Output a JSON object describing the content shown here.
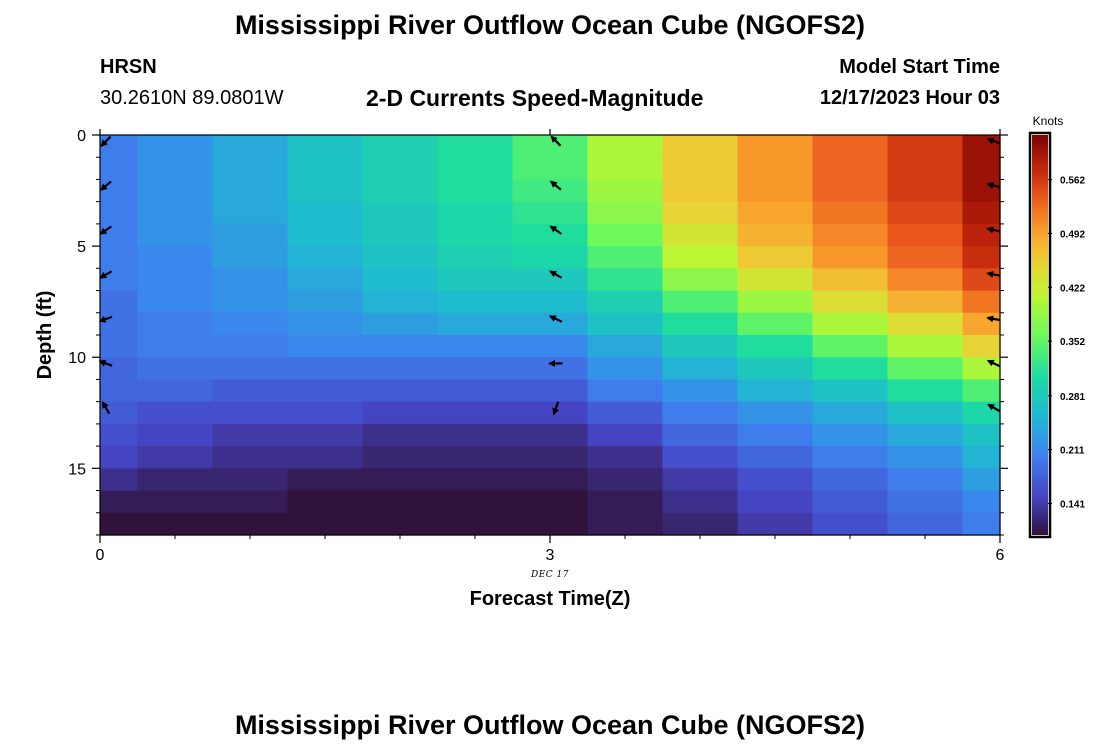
{
  "header": {
    "title": "Mississippi River Outflow Ocean Cube (NGOFS2)",
    "station": "HRSN",
    "coords": "30.2610N  89.0801W",
    "subtitle": "2-D Currents Speed-Magnitude",
    "model_label": "Model Start Time",
    "model_time": "12/17/2023 Hour 03"
  },
  "footer": {
    "title": "Mississippi River Outflow Ocean Cube (NGOFS2)"
  },
  "chart_data": {
    "type": "heatmap",
    "xlabel": "Forecast Time(Z)",
    "ylabel": "Depth (ft)",
    "x_date_label": "DEC 17",
    "x_ticks": [
      0,
      3,
      6
    ],
    "y_ticks": [
      0,
      5,
      10,
      15
    ],
    "xlim": [
      0,
      6
    ],
    "ylim": [
      0,
      18
    ],
    "y_inverted": true,
    "colorbar": {
      "label": "Knots",
      "min": 0.1,
      "max": 0.62,
      "ticks": [
        "0.141",
        "0.211",
        "0.281",
        "0.352",
        "0.422",
        "0.492",
        "0.562"
      ]
    },
    "time_columns": [
      0,
      0.5,
      1,
      1.5,
      2,
      2.5,
      3,
      3.5,
      4,
      4.5,
      5,
      5.5,
      6
    ],
    "depth_layers": 18,
    "speed_knots": [
      [
        0.2,
        0.22,
        0.24,
        0.27,
        0.29,
        0.31,
        0.34,
        0.4,
        0.46,
        0.5,
        0.53,
        0.56,
        0.6
      ],
      [
        0.2,
        0.22,
        0.24,
        0.27,
        0.29,
        0.31,
        0.34,
        0.4,
        0.46,
        0.5,
        0.53,
        0.56,
        0.6
      ],
      [
        0.2,
        0.22,
        0.24,
        0.27,
        0.29,
        0.31,
        0.33,
        0.39,
        0.46,
        0.5,
        0.53,
        0.56,
        0.6
      ],
      [
        0.2,
        0.22,
        0.24,
        0.26,
        0.28,
        0.3,
        0.32,
        0.38,
        0.45,
        0.49,
        0.52,
        0.55,
        0.59
      ],
      [
        0.2,
        0.22,
        0.23,
        0.26,
        0.28,
        0.3,
        0.31,
        0.36,
        0.43,
        0.48,
        0.51,
        0.54,
        0.58
      ],
      [
        0.2,
        0.21,
        0.23,
        0.25,
        0.27,
        0.29,
        0.3,
        0.34,
        0.41,
        0.46,
        0.5,
        0.53,
        0.57
      ],
      [
        0.2,
        0.21,
        0.22,
        0.24,
        0.26,
        0.28,
        0.28,
        0.32,
        0.38,
        0.43,
        0.47,
        0.51,
        0.55
      ],
      [
        0.19,
        0.21,
        0.22,
        0.23,
        0.25,
        0.26,
        0.26,
        0.29,
        0.34,
        0.39,
        0.44,
        0.48,
        0.52
      ],
      [
        0.19,
        0.2,
        0.21,
        0.22,
        0.23,
        0.24,
        0.24,
        0.27,
        0.31,
        0.35,
        0.4,
        0.44,
        0.49
      ],
      [
        0.19,
        0.2,
        0.2,
        0.21,
        0.21,
        0.21,
        0.21,
        0.24,
        0.28,
        0.31,
        0.35,
        0.4,
        0.45
      ],
      [
        0.18,
        0.19,
        0.19,
        0.19,
        0.19,
        0.19,
        0.19,
        0.22,
        0.25,
        0.28,
        0.31,
        0.35,
        0.4
      ],
      [
        0.18,
        0.18,
        0.17,
        0.17,
        0.17,
        0.17,
        0.17,
        0.2,
        0.22,
        0.25,
        0.27,
        0.31,
        0.34
      ],
      [
        0.17,
        0.16,
        0.16,
        0.16,
        0.15,
        0.15,
        0.15,
        0.17,
        0.2,
        0.22,
        0.24,
        0.27,
        0.3
      ],
      [
        0.16,
        0.15,
        0.14,
        0.14,
        0.13,
        0.13,
        0.13,
        0.15,
        0.18,
        0.2,
        0.22,
        0.24,
        0.27
      ],
      [
        0.15,
        0.14,
        0.13,
        0.13,
        0.12,
        0.12,
        0.12,
        0.13,
        0.16,
        0.18,
        0.2,
        0.22,
        0.25
      ],
      [
        0.13,
        0.12,
        0.12,
        0.11,
        0.11,
        0.11,
        0.11,
        0.12,
        0.14,
        0.16,
        0.18,
        0.2,
        0.23
      ],
      [
        0.11,
        0.11,
        0.11,
        0.1,
        0.1,
        0.1,
        0.08,
        0.11,
        0.13,
        0.15,
        0.17,
        0.19,
        0.21
      ],
      [
        0.03,
        0.03,
        0.03,
        0.03,
        0.03,
        0.03,
        0.02,
        0.11,
        0.12,
        0.14,
        0.16,
        0.18,
        0.2
      ]
    ],
    "vectors": [
      {
        "time": 0,
        "depth": 0.1,
        "angle_deg": 135
      },
      {
        "time": 0,
        "depth": 2.1,
        "angle_deg": 140
      },
      {
        "time": 0,
        "depth": 4.1,
        "angle_deg": 145
      },
      {
        "time": 0,
        "depth": 6.1,
        "angle_deg": 150
      },
      {
        "time": 0,
        "depth": 8.1,
        "angle_deg": 160
      },
      {
        "time": 0,
        "depth": 10.1,
        "angle_deg": 200
      },
      {
        "time": 0,
        "depth": 12.1,
        "angle_deg": 240
      },
      {
        "time": 3,
        "depth": 0.1,
        "angle_deg": 225
      },
      {
        "time": 3,
        "depth": 2.1,
        "angle_deg": 220
      },
      {
        "time": 3,
        "depth": 4.1,
        "angle_deg": 215
      },
      {
        "time": 3,
        "depth": 6.1,
        "angle_deg": 210
      },
      {
        "time": 3,
        "depth": 8.1,
        "angle_deg": 205
      },
      {
        "time": 3,
        "depth": 10.1,
        "angle_deg": 180
      },
      {
        "time": 3,
        "depth": 12.1,
        "angle_deg": 110
      },
      {
        "time": 6,
        "depth": 0.1,
        "angle_deg": 200
      },
      {
        "time": 6,
        "depth": 2.1,
        "angle_deg": 195
      },
      {
        "time": 6,
        "depth": 4.1,
        "angle_deg": 192
      },
      {
        "time": 6,
        "depth": 6.1,
        "angle_deg": 190
      },
      {
        "time": 6,
        "depth": 8.1,
        "angle_deg": 190
      },
      {
        "time": 6,
        "depth": 10.1,
        "angle_deg": 205
      },
      {
        "time": 6,
        "depth": 12.1,
        "angle_deg": 210
      }
    ]
  }
}
